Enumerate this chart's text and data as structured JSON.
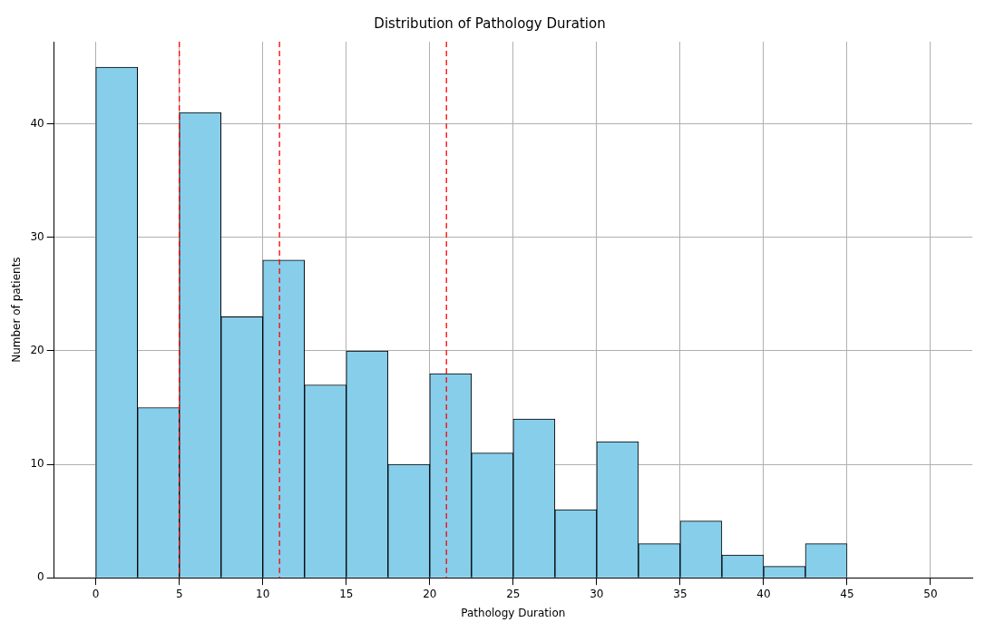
{
  "chart_data": {
    "type": "histogram",
    "title": "Distribution of Pathology Duration",
    "xlabel": "Pathology Duration",
    "ylabel": "Number of patients",
    "bins": [
      0,
      2.5,
      5,
      7.5,
      10,
      12.5,
      15,
      17.5,
      20,
      22.5,
      25,
      27.5,
      30,
      32.5,
      35,
      37.5,
      40,
      42.5,
      45
    ],
    "values": [
      45,
      15,
      41,
      23,
      28,
      17,
      20,
      10,
      18,
      11,
      14,
      6,
      12,
      3,
      5,
      2,
      1,
      3
    ],
    "color": "#87ceeb",
    "xlim": [
      -2.5,
      52.5
    ],
    "xticks": [
      0,
      5,
      10,
      15,
      20,
      25,
      30,
      35,
      40,
      45,
      50
    ],
    "ylim": [
      0,
      47.25
    ],
    "yticks": [
      0,
      10,
      20,
      30,
      40
    ],
    "grid": true,
    "ref_lines": [
      {
        "axis": "x",
        "value": 5,
        "color": "#ff0000",
        "line_style": "dashed"
      },
      {
        "axis": "x",
        "value": 11,
        "color": "#ff0000",
        "line_style": "dashed"
      },
      {
        "axis": "x",
        "value": 21,
        "color": "#ff0000",
        "line_style": "dashed"
      }
    ]
  }
}
